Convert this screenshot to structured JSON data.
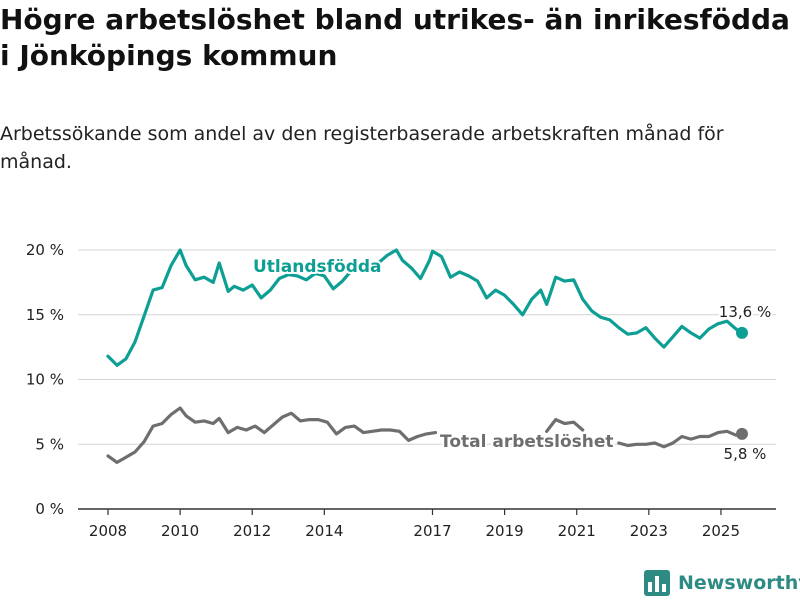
{
  "title": "Högre arbetslöshet bland utrikes- än inrikesfödda i Jönköpings kommun",
  "subtitle": "Arbetssökande som andel av den registerbaserade arbetskraften månad för månad.",
  "brand": {
    "name": "Newsworthy",
    "logo": "bar-chart-logo-icon"
  },
  "colors": {
    "utlandsfodda": "#0d9f94",
    "total": "#6e6e6e",
    "grid": "#d4d4d4",
    "axis": "#333333",
    "text": "#222222"
  },
  "chart_data": {
    "type": "line",
    "title": "",
    "xlabel": "",
    "ylabel": "",
    "x_tick_labels": [
      "2008",
      "2010",
      "2012",
      "2014",
      "2017",
      "2019",
      "2021",
      "2023",
      "2025"
    ],
    "y_tick_labels": [
      "0 %",
      "5 %",
      "10 %",
      "15 %",
      "20 %"
    ],
    "ylim": [
      0,
      20
    ],
    "grid": "horizontal",
    "series": [
      {
        "name": "Utlandsfödda",
        "end_label": "13,6 %",
        "points": [
          [
            "2008-01",
            11.8
          ],
          [
            "2008-04",
            11.1
          ],
          [
            "2008-07",
            11.6
          ],
          [
            "2008-10",
            12.9
          ],
          [
            "2009-01",
            14.9
          ],
          [
            "2009-04",
            16.9
          ],
          [
            "2009-07",
            17.1
          ],
          [
            "2009-10",
            18.8
          ],
          [
            "2010-01",
            20.0
          ],
          [
            "2010-03",
            18.8
          ],
          [
            "2010-06",
            17.7
          ],
          [
            "2010-09",
            17.9
          ],
          [
            "2010-12",
            17.5
          ],
          [
            "2011-02",
            19.0
          ],
          [
            "2011-05",
            16.8
          ],
          [
            "2011-07",
            17.2
          ],
          [
            "2011-10",
            16.9
          ],
          [
            "2012-01",
            17.3
          ],
          [
            "2012-04",
            16.3
          ],
          [
            "2012-07",
            16.9
          ],
          [
            "2012-10",
            17.8
          ],
          [
            "2013-01",
            18.1
          ],
          [
            "2013-04",
            18.0
          ],
          [
            "2013-07",
            17.7
          ],
          [
            "2013-10",
            18.2
          ],
          [
            "2014-01",
            18.0
          ],
          [
            "2014-04",
            17.0
          ],
          [
            "2014-07",
            17.6
          ],
          [
            "2014-10",
            18.4
          ],
          [
            "2015-01",
            18.6
          ],
          [
            "2015-04",
            18.7
          ],
          [
            "2015-07",
            19.0
          ],
          [
            "2015-10",
            19.6
          ],
          [
            "2016-01",
            20.0
          ],
          [
            "2016-03",
            19.2
          ],
          [
            "2016-06",
            18.6
          ],
          [
            "2016-09",
            17.8
          ],
          [
            "2016-12",
            19.2
          ],
          [
            "2017-01",
            19.9
          ],
          [
            "2017-04",
            19.5
          ],
          [
            "2017-07",
            17.9
          ],
          [
            "2017-10",
            18.3
          ],
          [
            "2018-01",
            18.0
          ],
          [
            "2018-04",
            17.6
          ],
          [
            "2018-07",
            16.3
          ],
          [
            "2018-10",
            16.9
          ],
          [
            "2019-01",
            16.5
          ],
          [
            "2019-04",
            15.8
          ],
          [
            "2019-07",
            15.0
          ],
          [
            "2019-10",
            16.2
          ],
          [
            "2020-01",
            16.9
          ],
          [
            "2020-03",
            15.8
          ],
          [
            "2020-06",
            17.9
          ],
          [
            "2020-09",
            17.6
          ],
          [
            "2020-12",
            17.7
          ],
          [
            "2021-03",
            16.2
          ],
          [
            "2021-06",
            15.3
          ],
          [
            "2021-09",
            14.8
          ],
          [
            "2021-12",
            14.6
          ],
          [
            "2022-03",
            14.0
          ],
          [
            "2022-06",
            13.5
          ],
          [
            "2022-09",
            13.6
          ],
          [
            "2022-12",
            14.0
          ],
          [
            "2023-03",
            13.2
          ],
          [
            "2023-06",
            12.5
          ],
          [
            "2023-09",
            13.3
          ],
          [
            "2023-12",
            14.1
          ],
          [
            "2024-03",
            13.6
          ],
          [
            "2024-06",
            13.2
          ],
          [
            "2024-09",
            13.9
          ],
          [
            "2024-12",
            14.3
          ],
          [
            "2025-03",
            14.5
          ],
          [
            "2025-06",
            13.9
          ],
          [
            "2025-08",
            13.6
          ]
        ]
      },
      {
        "name": "Total arbetslöshet",
        "end_label": "5,8 %",
        "points": [
          [
            "2008-01",
            4.1
          ],
          [
            "2008-04",
            3.6
          ],
          [
            "2008-07",
            4.0
          ],
          [
            "2008-10",
            4.4
          ],
          [
            "2009-01",
            5.2
          ],
          [
            "2009-04",
            6.4
          ],
          [
            "2009-07",
            6.6
          ],
          [
            "2009-10",
            7.3
          ],
          [
            "2010-01",
            7.8
          ],
          [
            "2010-03",
            7.2
          ],
          [
            "2010-06",
            6.7
          ],
          [
            "2010-09",
            6.8
          ],
          [
            "2010-12",
            6.6
          ],
          [
            "2011-02",
            7.0
          ],
          [
            "2011-05",
            5.9
          ],
          [
            "2011-08",
            6.3
          ],
          [
            "2011-11",
            6.1
          ],
          [
            "2012-02",
            6.4
          ],
          [
            "2012-05",
            5.9
          ],
          [
            "2012-08",
            6.5
          ],
          [
            "2012-11",
            7.1
          ],
          [
            "2013-02",
            7.4
          ],
          [
            "2013-05",
            6.8
          ],
          [
            "2013-08",
            6.9
          ],
          [
            "2013-11",
            6.9
          ],
          [
            "2014-02",
            6.7
          ],
          [
            "2014-05",
            5.8
          ],
          [
            "2014-08",
            6.3
          ],
          [
            "2014-11",
            6.4
          ],
          [
            "2015-02",
            5.9
          ],
          [
            "2015-05",
            6.0
          ],
          [
            "2015-08",
            6.1
          ],
          [
            "2015-11",
            6.1
          ],
          [
            "2016-02",
            6.0
          ],
          [
            "2016-05",
            5.3
          ],
          [
            "2016-08",
            5.6
          ],
          [
            "2016-11",
            5.8
          ],
          [
            "2017-02",
            5.9
          ],
          [
            "2020-03",
            6.0
          ],
          [
            "2020-06",
            6.9
          ],
          [
            "2020-09",
            6.6
          ],
          [
            "2020-12",
            6.7
          ],
          [
            "2021-03",
            6.1
          ],
          [
            "2022-03",
            5.1
          ],
          [
            "2022-06",
            4.9
          ],
          [
            "2022-09",
            5.0
          ],
          [
            "2022-12",
            5.0
          ],
          [
            "2023-03",
            5.1
          ],
          [
            "2023-06",
            4.8
          ],
          [
            "2023-09",
            5.1
          ],
          [
            "2023-12",
            5.6
          ],
          [
            "2024-03",
            5.4
          ],
          [
            "2024-06",
            5.6
          ],
          [
            "2024-09",
            5.6
          ],
          [
            "2024-12",
            5.9
          ],
          [
            "2025-03",
            6.0
          ],
          [
            "2025-06",
            5.7
          ],
          [
            "2025-08",
            5.8
          ]
        ]
      }
    ]
  }
}
